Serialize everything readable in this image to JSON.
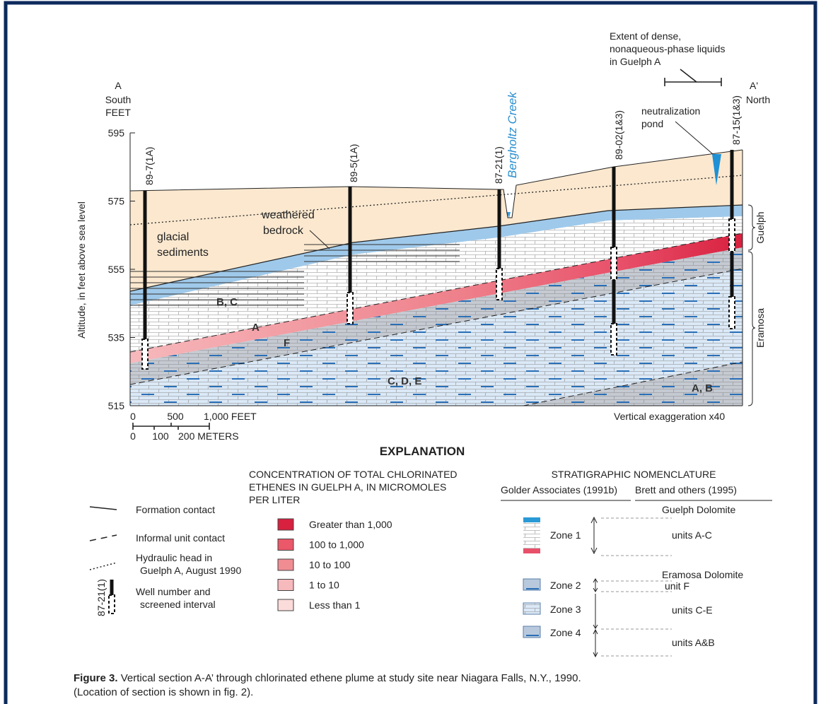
{
  "section": {
    "start": {
      "letter": "A",
      "direction": "South",
      "units": "FEET"
    },
    "end": {
      "letter": "A'",
      "direction": "North"
    },
    "axis_label": "Altitude, in feet above sea level",
    "yticks": [
      595,
      575,
      555,
      535,
      515
    ],
    "formations": [
      "Guelph",
      "Eramosa"
    ],
    "wells": [
      "89-7(1A)",
      "89-5(1A)",
      "87-21(1)",
      "89-02(1&3)",
      "87-15(1&3)"
    ],
    "creek": "Bergholtz Creek",
    "dnapl_note": [
      "Extent of dense,",
      "nonaqueous-phase liquids",
      "in Guelph A"
    ],
    "pond_note": [
      "neutralization",
      "pond"
    ],
    "labels": {
      "weathered_bedrock": [
        "weathered",
        "bedrock"
      ],
      "glacial_sediments": [
        "glacial",
        "sediments"
      ],
      "units_bc": "B, C",
      "unit_a": "A",
      "unit_f": "F",
      "units_cde": "C, D, E",
      "units_ab": "A, B"
    },
    "scale": {
      "feet": [
        "0",
        "500",
        "1,000 FEET"
      ],
      "meters": [
        "0",
        "100",
        "200 METERS"
      ]
    },
    "exaggeration": "Vertical exaggeration x40"
  },
  "explanation": {
    "title": "EXPLANATION",
    "symbols": [
      {
        "label": [
          "Formation contact"
        ]
      },
      {
        "label": [
          "Informal unit contact"
        ]
      },
      {
        "label": [
          "Hydraulic head in",
          "Guelph A, August 1990"
        ]
      },
      {
        "label": [
          "Well number and",
          "screened interval"
        ],
        "example": "87-21(1)"
      }
    ],
    "concentration": {
      "title": [
        "CONCENTRATION OF TOTAL CHLORINATED",
        "ETHENES IN GUELPH A, IN MICROMOLES",
        "PER LITER"
      ],
      "classes": [
        {
          "label": "Greater than 1,000",
          "color": "#d8203f"
        },
        {
          "label": "100 to 1,000",
          "color": "#ea5869"
        },
        {
          "label": "10 to 100",
          "color": "#f08d93"
        },
        {
          "label": "1 to 10",
          "color": "#f6b9bc"
        },
        {
          "label": "Less than 1",
          "color": "#fbdcdb"
        }
      ]
    },
    "stratigraphy": {
      "title": "STRATIGRAPHIC NOMENCLATURE",
      "columns": [
        "Golder Associates (1991b)",
        "Brett and others (1995)"
      ],
      "zones": [
        "Zone 1",
        "Zone 2",
        "Zone 3",
        "Zone 4"
      ],
      "formations": [
        "Guelph Dolomite",
        "Eramosa Dolomite"
      ],
      "units": [
        "units A-C",
        "unit F",
        "units C-E",
        "units A&B"
      ]
    }
  },
  "caption": {
    "label": "Figure 3.",
    "text": [
      "Vertical section A-A’ through chlorinated ethene plume at study site near Niagara Falls, N.Y., 1990.",
      "(Location of section is shown in fig. 2)."
    ]
  }
}
